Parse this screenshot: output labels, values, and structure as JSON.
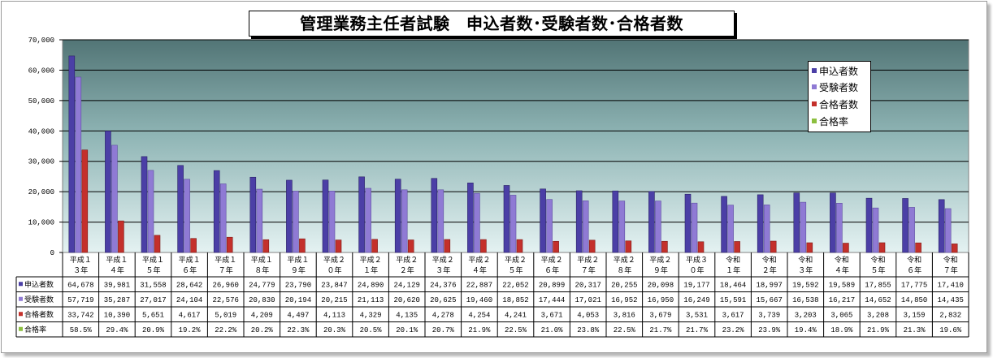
{
  "title": "管理業務主任者試験　申込者数･受験者数･合格者数",
  "colors": {
    "applicants": "#4b3fa6",
    "examinees": "#8f7ad4",
    "passers": "#c4302b",
    "rate": "#8cbf3f"
  },
  "legend": [
    "申込者数",
    "受験者数",
    "合格者数",
    "合格率"
  ],
  "chart_data": {
    "type": "bar",
    "yticks": [
      "0",
      "10,000",
      "20,000",
      "30,000",
      "40,000",
      "50,000",
      "60,000",
      "70,000"
    ],
    "ylim": [
      0,
      70000
    ],
    "grid": true,
    "legend_position": "right",
    "categories": [
      [
        "平成１",
        "３年"
      ],
      [
        "平成１",
        "４年"
      ],
      [
        "平成１",
        "５年"
      ],
      [
        "平成１",
        "６年"
      ],
      [
        "平成１",
        "７年"
      ],
      [
        "平成１",
        "８年"
      ],
      [
        "平成１",
        "９年"
      ],
      [
        "平成２",
        "０年"
      ],
      [
        "平成２",
        "１年"
      ],
      [
        "平成２",
        "２年"
      ],
      [
        "平成２",
        "３年"
      ],
      [
        "平成２",
        "４年"
      ],
      [
        "平成２",
        "５年"
      ],
      [
        "平成２",
        "６年"
      ],
      [
        "平成２",
        "７年"
      ],
      [
        "平成２",
        "８年"
      ],
      [
        "平成２",
        "９年"
      ],
      [
        "平成３",
        "０年"
      ],
      [
        "令和",
        "１年"
      ],
      [
        "令和",
        "２年"
      ],
      [
        "令和",
        "３年"
      ],
      [
        "令和",
        "４年"
      ],
      [
        "令和",
        "５年"
      ],
      [
        "令和",
        "６年"
      ],
      [
        "令和",
        "７年"
      ]
    ],
    "series": [
      {
        "name": "申込者数",
        "values": [
          64678,
          39981,
          31558,
          28642,
          26960,
          24779,
          23790,
          23847,
          24890,
          24129,
          24376,
          22887,
          22052,
          20899,
          20317,
          20255,
          20098,
          19177,
          18464,
          18997,
          19592,
          19589,
          17855,
          17775,
          17410
        ],
        "labels": [
          "64,678",
          "39,981",
          "31,558",
          "28,642",
          "26,960",
          "24,779",
          "23,790",
          "23,847",
          "24,890",
          "24,129",
          "24,376",
          "22,887",
          "22,052",
          "20,899",
          "20,317",
          "20,255",
          "20,098",
          "19,177",
          "18,464",
          "18,997",
          "19,592",
          "19,589",
          "17,855",
          "17,775",
          "17,410"
        ]
      },
      {
        "name": "受験者数",
        "values": [
          57719,
          35287,
          27017,
          24104,
          22576,
          20830,
          20194,
          20215,
          21113,
          20620,
          20625,
          19460,
          18852,
          17444,
          17021,
          16952,
          16950,
          16249,
          15591,
          15667,
          16538,
          16217,
          14652,
          14850,
          14435
        ],
        "labels": [
          "57,719",
          "35,287",
          "27,017",
          "24,104",
          "22,576",
          "20,830",
          "20,194",
          "20,215",
          "21,113",
          "20,620",
          "20,625",
          "19,460",
          "18,852",
          "17,444",
          "17,021",
          "16,952",
          "16,950",
          "16,249",
          "15,591",
          "15,667",
          "16,538",
          "16,217",
          "14,652",
          "14,850",
          "14,435"
        ]
      },
      {
        "name": "合格者数",
        "values": [
          33742,
          10390,
          5651,
          4617,
          5019,
          4209,
          4497,
          4113,
          4329,
          4135,
          4278,
          4254,
          4241,
          3671,
          4053,
          3816,
          3679,
          3531,
          3617,
          3739,
          3203,
          3065,
          3208,
          3159,
          2832
        ],
        "labels": [
          "33,742",
          "10,390",
          "5,651",
          "4,617",
          "5,019",
          "4,209",
          "4,497",
          "4,113",
          "4,329",
          "4,135",
          "4,278",
          "4,254",
          "4,241",
          "3,671",
          "4,053",
          "3,816",
          "3,679",
          "3,531",
          "3,617",
          "3,739",
          "3,203",
          "3,065",
          "3,208",
          "3,159",
          "2,832"
        ]
      },
      {
        "name": "合格率",
        "labels": [
          "58.5%",
          "29.4%",
          "20.9%",
          "19.2%",
          "22.2%",
          "20.2%",
          "22.3%",
          "20.3%",
          "20.5%",
          "20.1%",
          "20.7%",
          "21.9%",
          "22.5%",
          "21.0%",
          "23.8%",
          "22.5%",
          "21.7%",
          "21.7%",
          "23.2%",
          "23.9%",
          "19.4%",
          "18.9%",
          "21.9%",
          "21.3%",
          "19.6%"
        ]
      }
    ]
  }
}
